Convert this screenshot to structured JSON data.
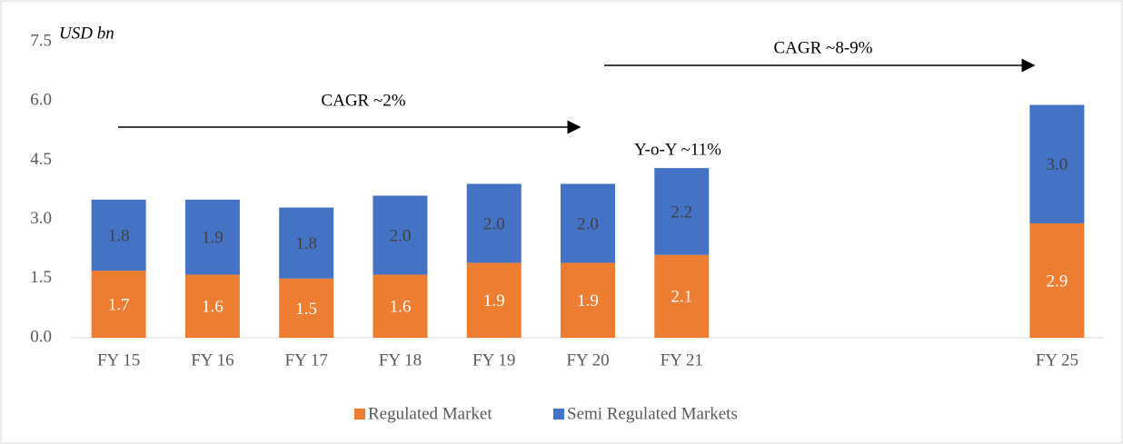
{
  "chart_data": {
    "type": "stacked_bar",
    "ylabel": "USD bn",
    "categories": [
      "FY 15",
      "FY 16",
      "FY 17",
      "FY 18",
      "FY 19",
      "FY 20",
      "FY 21",
      null,
      null,
      null,
      "FY 25"
    ],
    "series": [
      {
        "name": "Regulated Market",
        "color": "#ED7D31",
        "values": [
          1.7,
          1.6,
          1.5,
          1.6,
          1.9,
          1.9,
          2.1,
          null,
          null,
          null,
          2.9
        ],
        "value_labels": [
          "1.7",
          "1.6",
          "1.5",
          "1.6",
          "1.9",
          "1.9",
          "2.1",
          null,
          null,
          null,
          "2.9"
        ]
      },
      {
        "name": "Semi Regulated Markets",
        "color": "#4472C4",
        "values": [
          1.8,
          1.9,
          1.8,
          2.0,
          2.0,
          2.0,
          2.2,
          null,
          null,
          null,
          3.0
        ],
        "value_labels": [
          "1.8",
          "1.9",
          "1.8",
          "2.0",
          "2.0",
          "2.0",
          "2.2",
          null,
          null,
          null,
          "3.0"
        ]
      }
    ],
    "ylim": [
      0,
      7.5
    ],
    "yticks": [
      {
        "value": 0,
        "label": "0.0"
      },
      1.5,
      {
        "value": 3,
        "label": "3.0"
      },
      4.5,
      {
        "value": 6,
        "label": "6.0"
      },
      7.5
    ],
    "grid": false,
    "legend": "bottom",
    "annotations": [
      "CAGR ~2%",
      "CAGR ~8-9%",
      "Y-o-Y ~11%"
    ]
  }
}
